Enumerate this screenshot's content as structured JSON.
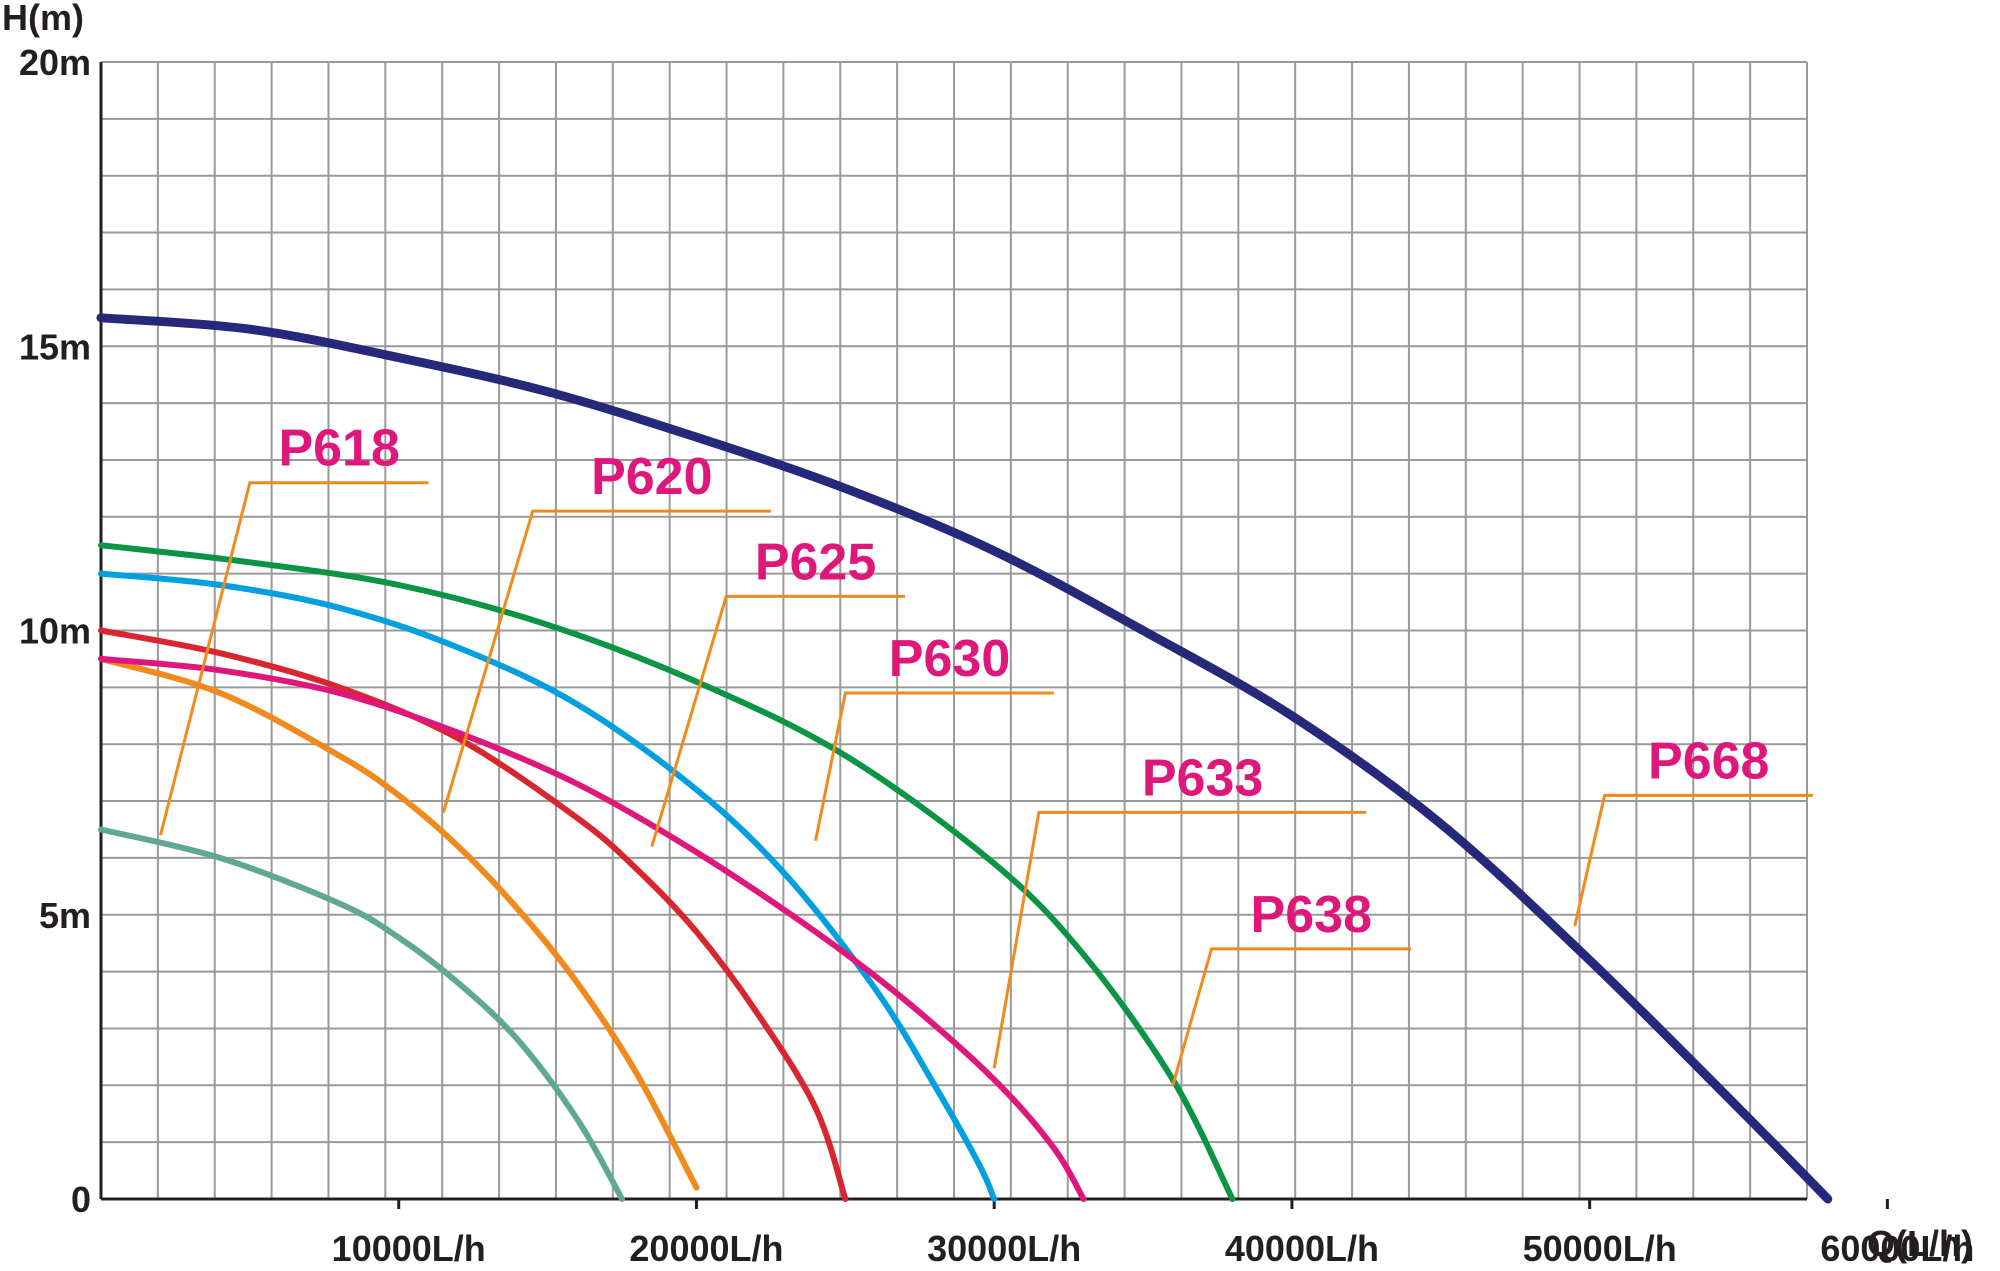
{
  "chart_data": {
    "type": "line",
    "title": "",
    "xlabel": "Q(L/h)",
    "ylabel": "H(m)",
    "xlim": [
      0,
      60000
    ],
    "ylim": [
      0,
      20
    ],
    "x_ticks": [
      {
        "value": 10000,
        "label": "10000L/h"
      },
      {
        "value": 20000,
        "label": "20000L/h"
      },
      {
        "value": 30000,
        "label": "30000L/h"
      },
      {
        "value": 40000,
        "label": "40000L/h"
      },
      {
        "value": 50000,
        "label": "50000L/h"
      },
      {
        "value": 60000,
        "label": "60000L/h"
      }
    ],
    "y_ticks": [
      {
        "value": 0,
        "label": "0"
      },
      {
        "value": 5,
        "label": "5m"
      },
      {
        "value": 10,
        "label": "10m"
      },
      {
        "value": 15,
        "label": "15m"
      },
      {
        "value": 20,
        "label": "20m"
      }
    ],
    "grid": true,
    "series": [
      {
        "name": "P618",
        "color": "#5fa894",
        "leader_color": "#f08a1c",
        "x": [
          0,
          4000,
          8000,
          10000,
          12000,
          14000,
          16000,
          17500
        ],
        "y": [
          6.5,
          6.0,
          5.2,
          4.6,
          3.8,
          2.8,
          1.4,
          0
        ],
        "callout": {
          "point": [
            2000,
            6.4
          ],
          "elbow": [
            5000,
            12.6
          ],
          "end": [
            11000,
            12.6
          ]
        }
      },
      {
        "name": "P620",
        "color": "#f08a1c",
        "leader_color": "#f08a1c",
        "x": [
          0,
          4000,
          8000,
          10000,
          12000,
          14000,
          16000,
          18000,
          20000
        ],
        "y": [
          9.5,
          8.9,
          7.8,
          7.1,
          6.2,
          5.1,
          3.8,
          2.2,
          0.2
        ],
        "callout": {
          "point": [
            11500,
            6.8
          ],
          "elbow": [
            14500,
            12.1
          ],
          "end": [
            22500,
            12.1
          ]
        }
      },
      {
        "name": "P625",
        "color": "#d8252e",
        "leader_color": "#f08a1c",
        "x": [
          0,
          4000,
          8000,
          12000,
          16000,
          18000,
          20000,
          22000,
          24000,
          25000
        ],
        "y": [
          10.0,
          9.6,
          9.0,
          8.1,
          6.7,
          5.8,
          4.7,
          3.3,
          1.6,
          0
        ],
        "callout": {
          "point": [
            18500,
            6.2
          ],
          "elbow": [
            21000,
            10.6
          ],
          "end": [
            27000,
            10.6
          ]
        }
      },
      {
        "name": "P630",
        "color": "#00a0e0",
        "leader_color": "#f08a1c",
        "x": [
          0,
          4000,
          8000,
          12000,
          16000,
          20000,
          23000,
          26000,
          28000,
          29500,
          30000
        ],
        "y": [
          11.0,
          10.8,
          10.4,
          9.7,
          8.7,
          7.2,
          5.7,
          3.7,
          2.0,
          0.6,
          0
        ],
        "callout": {
          "point": [
            24000,
            6.3
          ],
          "elbow": [
            25000,
            8.9
          ],
          "end": [
            32000,
            8.9
          ]
        }
      },
      {
        "name": "P633",
        "color": "#e0177a",
        "leader_color": "#f08a1c",
        "x": [
          0,
          4000,
          8000,
          12000,
          16000,
          20000,
          24000,
          27000,
          30000,
          32000,
          33000
        ],
        "y": [
          9.5,
          9.3,
          8.9,
          8.2,
          7.3,
          6.1,
          4.7,
          3.5,
          2.1,
          0.9,
          0
        ],
        "callout": {
          "point": [
            30000,
            2.3
          ],
          "elbow": [
            31500,
            6.8
          ],
          "end": [
            42500,
            6.8
          ]
        }
      },
      {
        "name": "P638",
        "color": "#0b9444",
        "leader_color": "#f08a1c",
        "x": [
          0,
          5000,
          10000,
          15000,
          20000,
          25000,
          30000,
          33000,
          36000,
          38000
        ],
        "y": [
          11.5,
          11.2,
          10.8,
          10.1,
          9.1,
          7.8,
          5.9,
          4.3,
          2.1,
          0
        ],
        "callout": {
          "point": [
            36000,
            2.0
          ],
          "elbow": [
            37300,
            4.4
          ],
          "end": [
            44000,
            4.4
          ]
        }
      },
      {
        "name": "P668",
        "color": "#26297a",
        "leader_color": "#f08a1c",
        "x": [
          0,
          5000,
          10000,
          15000,
          20000,
          25000,
          30000,
          35000,
          40000,
          45000,
          50000,
          55000,
          58000
        ],
        "y": [
          15.5,
          15.3,
          14.8,
          14.2,
          13.4,
          12.5,
          11.4,
          10.0,
          8.5,
          6.6,
          4.2,
          1.6,
          0
        ],
        "callout": {
          "point": [
            49500,
            4.8
          ],
          "elbow": [
            50500,
            7.1
          ],
          "end": [
            57500,
            7.1
          ]
        }
      }
    ]
  }
}
